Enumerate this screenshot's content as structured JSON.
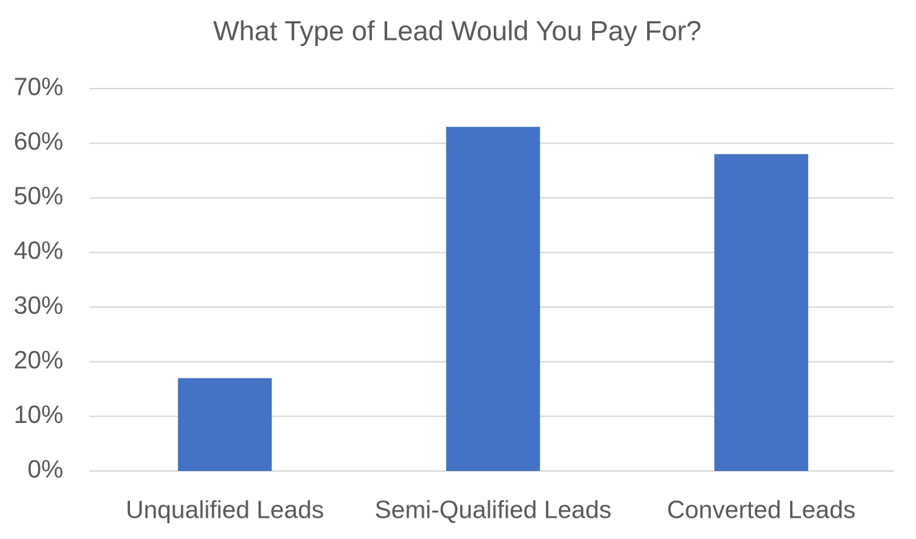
{
  "chart_data": {
    "type": "bar",
    "title": "What Type of Lead Would You Pay For?",
    "categories": [
      "Unqualified Leads",
      "Semi-Qualified Leads",
      "Converted Leads"
    ],
    "values": [
      17,
      63,
      58
    ],
    "color": "#4472c4",
    "ylim": [
      0,
      70
    ],
    "yticks": [
      {
        "value": 0,
        "label": "0%"
      },
      {
        "value": 10,
        "label": "10%"
      },
      {
        "value": 20,
        "label": "20%"
      },
      {
        "value": 30,
        "label": "30%"
      },
      {
        "value": 40,
        "label": "40%"
      },
      {
        "value": 50,
        "label": "50%"
      },
      {
        "value": 60,
        "label": "60%"
      },
      {
        "value": 70,
        "label": "70%"
      }
    ],
    "grid": true
  }
}
